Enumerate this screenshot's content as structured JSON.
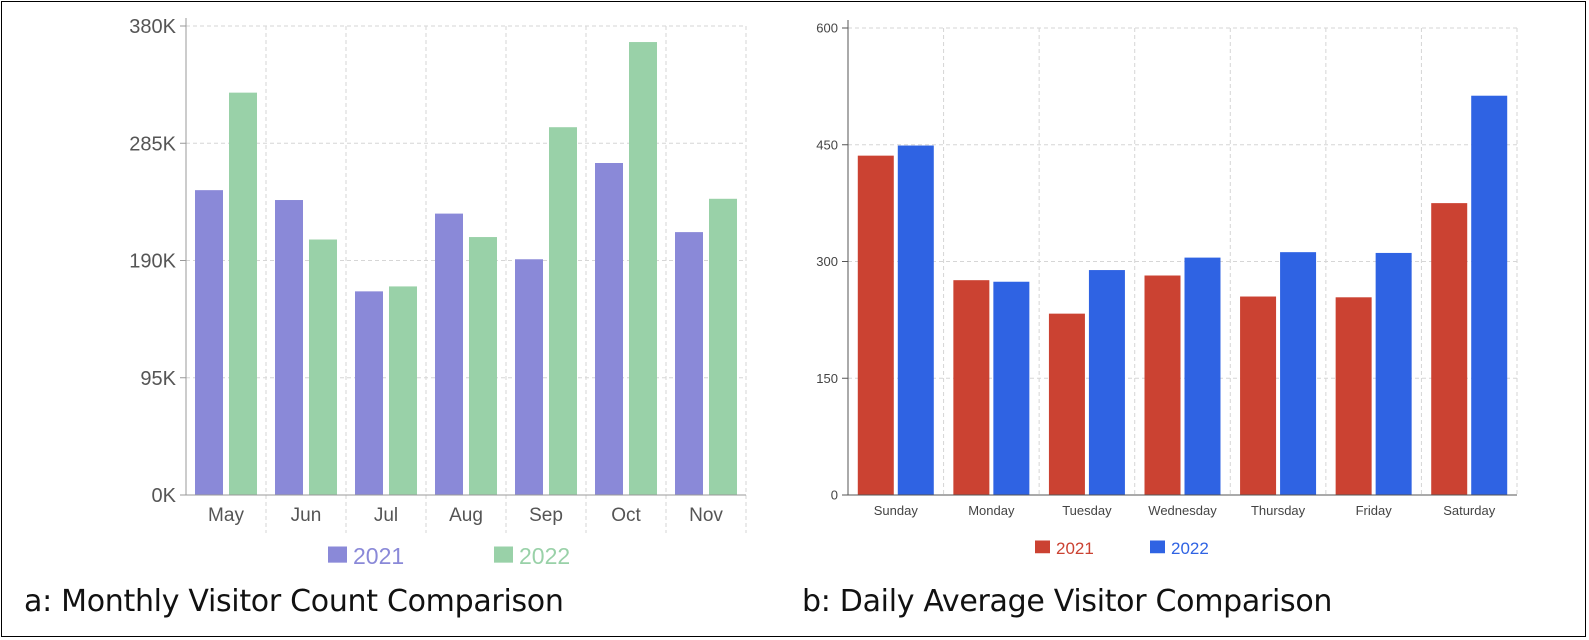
{
  "chart_data": [
    {
      "type": "bar",
      "caption": "a: Monthly Visitor Count Comparison",
      "categories": [
        "May",
        "Jun",
        "Jul",
        "Aug",
        "Sep",
        "Oct",
        "Nov"
      ],
      "series": [
        {
          "name": "2021",
          "color": "#8A89D8",
          "values": [
            247000,
            239000,
            165000,
            228000,
            191000,
            269000,
            213000
          ]
        },
        {
          "name": "2022",
          "color": "#99D1A8",
          "values": [
            326000,
            207000,
            169000,
            209000,
            298000,
            367000,
            240000
          ]
        }
      ],
      "yticks": [
        "0K",
        "95K",
        "190K",
        "285K",
        "380K"
      ],
      "ylim": [
        0,
        380000
      ],
      "grid": true,
      "legend": "bottom"
    },
    {
      "type": "bar",
      "caption": "b: Daily Average Visitor Comparison",
      "categories": [
        "Sunday",
        "Monday",
        "Tuesday",
        "Wednesday",
        "Thursday",
        "Friday",
        "Saturday"
      ],
      "series": [
        {
          "name": "2021",
          "color": "#CB4232",
          "values": [
            436,
            276,
            233,
            282,
            255,
            254,
            375
          ]
        },
        {
          "name": "2022",
          "color": "#2F63E3",
          "values": [
            449,
            274,
            289,
            305,
            312,
            311,
            513
          ]
        }
      ],
      "yticks": [
        "0",
        "150",
        "300",
        "450",
        "600"
      ],
      "ylim": [
        0,
        600
      ],
      "grid": true,
      "legend": "bottom"
    }
  ]
}
